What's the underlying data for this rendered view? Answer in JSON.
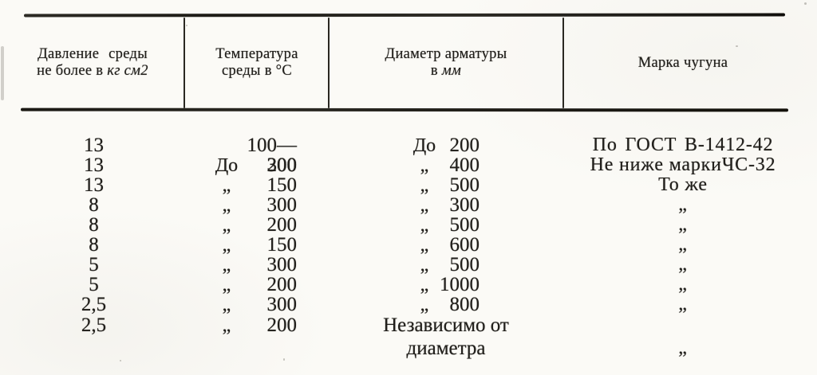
{
  "page": {
    "paper_color": "#fbfaf6",
    "ink_color": "#211f1b"
  },
  "table": {
    "headers": {
      "pressure": {
        "line1": "Давление среды",
        "line2_text": "не более в ",
        "line2_unit": "кг см2"
      },
      "temperature": {
        "line1": "Температура",
        "line2": "среды в °С"
      },
      "diameter": {
        "line1": "Диаметр арматуры",
        "line2_text": "в ",
        "line2_unit": "мм"
      },
      "grade": {
        "line1": "Марка чугуна"
      }
    },
    "ditto_mark": "„",
    "rows": [
      {
        "pressure": "13",
        "temp_prefix": "",
        "temp_value": "100—300",
        "diam_prefix": "До",
        "diam_value": "200",
        "grade": "По ГОСТ В-1412-42"
      },
      {
        "pressure": "13",
        "temp_prefix": "До",
        "temp_value": "200",
        "diam_prefix": "„",
        "diam_value": "400",
        "grade": "Не ниже маркиЧС-32"
      },
      {
        "pressure": "13",
        "temp_prefix": "„",
        "temp_value": "150",
        "diam_prefix": "„",
        "diam_value": "500",
        "grade": "То же"
      },
      {
        "pressure": "8",
        "temp_prefix": "„",
        "temp_value": "300",
        "diam_prefix": "„",
        "diam_value": "300",
        "grade": "„"
      },
      {
        "pressure": "8",
        "temp_prefix": "„",
        "temp_value": "200",
        "diam_prefix": "„",
        "diam_value": "500",
        "grade": "„"
      },
      {
        "pressure": "8",
        "temp_prefix": "„",
        "temp_value": "150",
        "diam_prefix": "„",
        "diam_value": "600",
        "grade": "„"
      },
      {
        "pressure": "5",
        "temp_prefix": "„",
        "temp_value": "300",
        "diam_prefix": "„",
        "diam_value": "500",
        "grade": "„"
      },
      {
        "pressure": "5",
        "temp_prefix": "„",
        "temp_value": "200",
        "diam_prefix": "„",
        "diam_value": "1000",
        "grade": "„"
      },
      {
        "pressure": "2,5",
        "temp_prefix": "„",
        "temp_value": "300",
        "diam_prefix": "„",
        "diam_value": "800",
        "grade": "„"
      },
      {
        "pressure": "2,5",
        "temp_prefix": "„",
        "temp_value": "200",
        "diam_line1": "Независимо от",
        "diam_line2": "диаметра",
        "grade": "„"
      }
    ]
  }
}
